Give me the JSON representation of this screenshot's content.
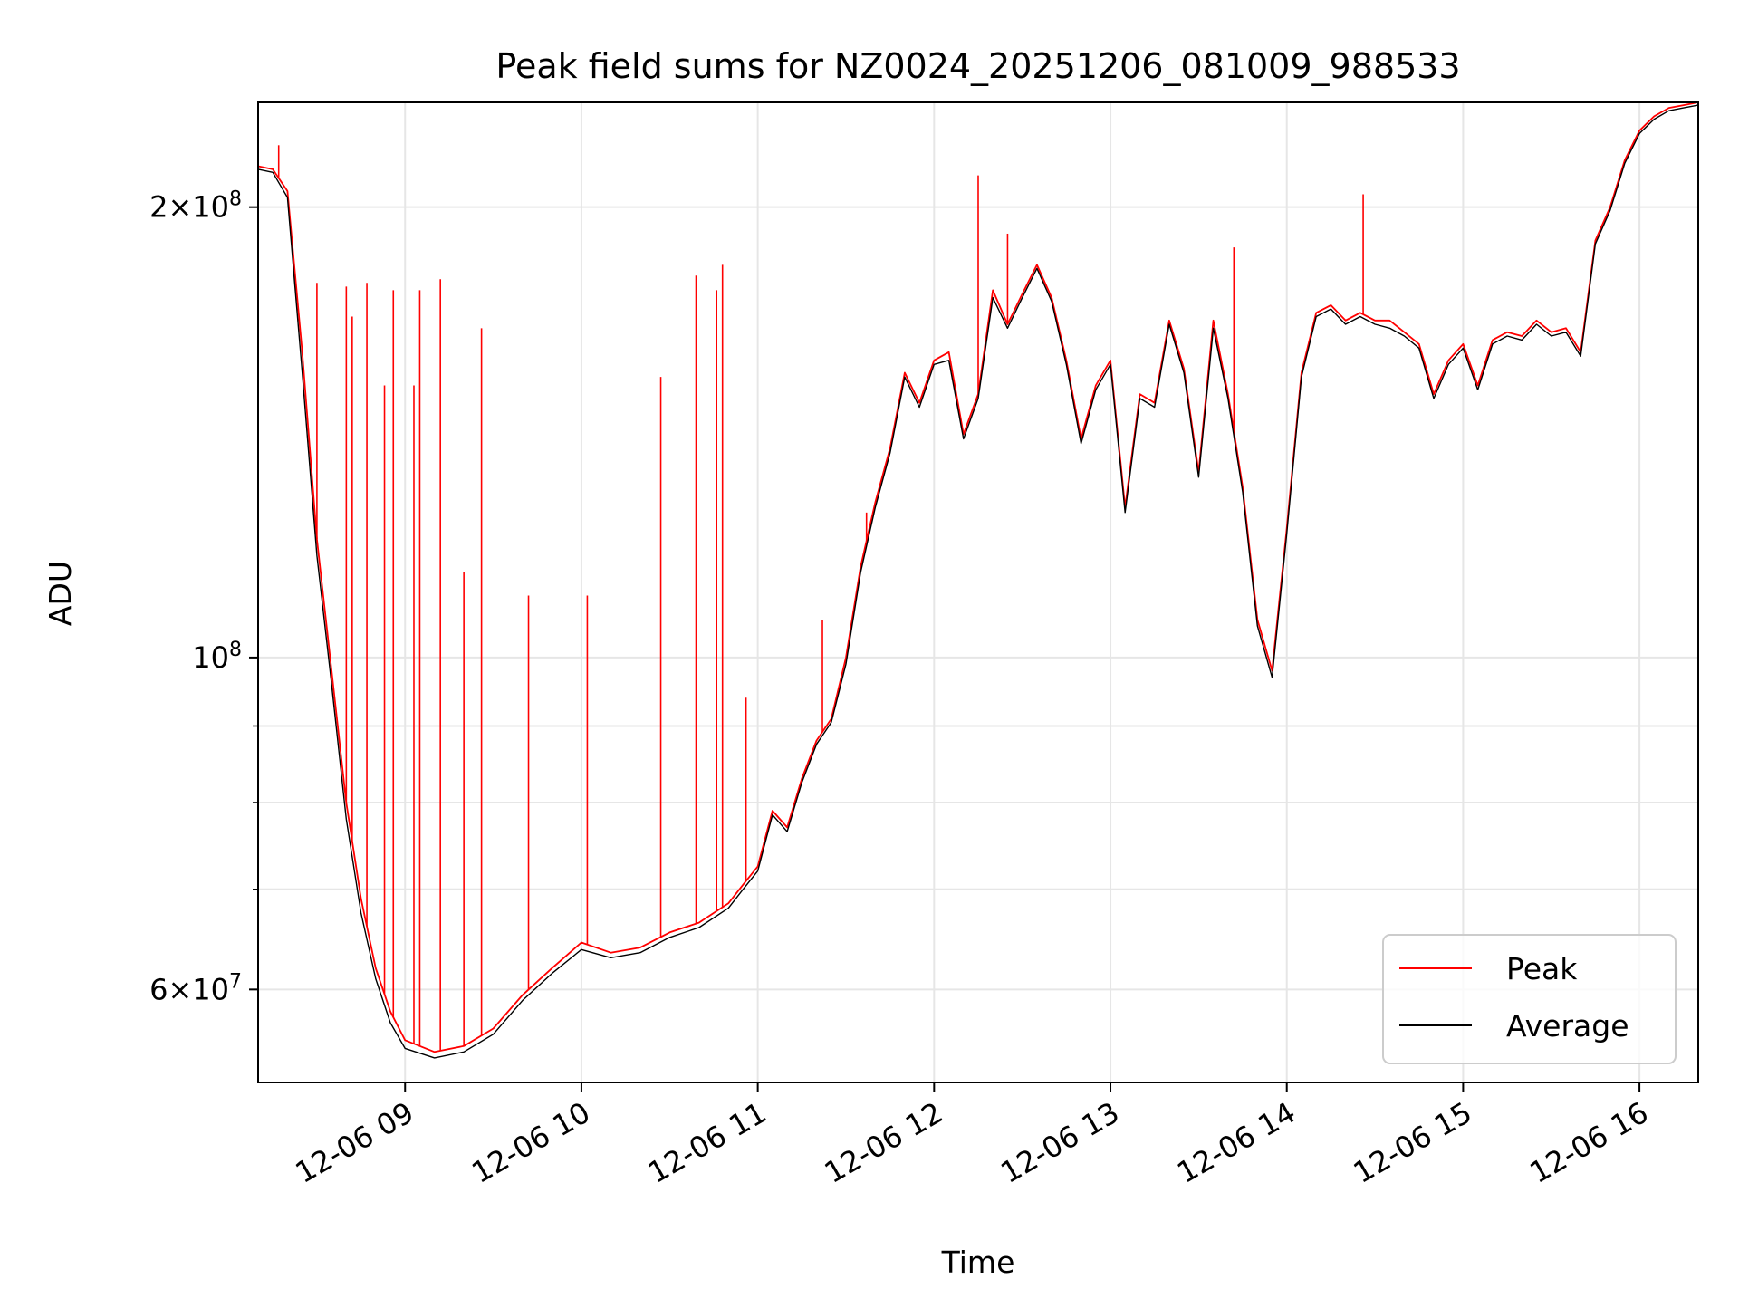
{
  "chart_data": {
    "type": "line",
    "title": "Peak field sums for NZ0024_20251206_081009_988533",
    "xlabel": "Time",
    "ylabel": "ADU",
    "x_axis_kind": "time",
    "xlim": [
      "2025-12-06 08:10",
      "2025-12-06 16:20"
    ],
    "ylim": [
      52000000,
      235000000
    ],
    "yscale": "log",
    "grid": true,
    "legend_location": "lower right",
    "x_ticks": [
      {
        "t": "2025-12-06 09:00",
        "label": "12-06 09"
      },
      {
        "t": "2025-12-06 10:00",
        "label": "12-06 10"
      },
      {
        "t": "2025-12-06 11:00",
        "label": "12-06 11"
      },
      {
        "t": "2025-12-06 12:00",
        "label": "12-06 12"
      },
      {
        "t": "2025-12-06 13:00",
        "label": "12-06 13"
      },
      {
        "t": "2025-12-06 14:00",
        "label": "12-06 14"
      },
      {
        "t": "2025-12-06 15:00",
        "label": "12-06 15"
      },
      {
        "t": "2025-12-06 16:00",
        "label": "12-06 16"
      }
    ],
    "y_ticks_major": [
      {
        "value": 60000000,
        "mantissa": "6",
        "exponent": "7"
      },
      {
        "value": 100000000,
        "mantissa": "",
        "exponent": "8"
      },
      {
        "value": 200000000,
        "mantissa": "2",
        "exponent": "8"
      }
    ],
    "y_ticks_minor": [
      70000000,
      80000000,
      90000000
    ],
    "series": [
      {
        "name": "Peak",
        "color": "#ff0000",
        "x": [
          "2025-12-06 08:10",
          "2025-12-06 08:15",
          "2025-12-06 08:20",
          "2025-12-06 08:25",
          "2025-12-06 08:30",
          "2025-12-06 08:35",
          "2025-12-06 08:40",
          "2025-12-06 08:45",
          "2025-12-06 08:50",
          "2025-12-06 08:55",
          "2025-12-06 09:00",
          "2025-12-06 09:10",
          "2025-12-06 09:20",
          "2025-12-06 09:30",
          "2025-12-06 09:40",
          "2025-12-06 09:50",
          "2025-12-06 10:00",
          "2025-12-06 10:10",
          "2025-12-06 10:20",
          "2025-12-06 10:30",
          "2025-12-06 10:40",
          "2025-12-06 10:50",
          "2025-12-06 10:55",
          "2025-12-06 11:00",
          "2025-12-06 11:05",
          "2025-12-06 11:10",
          "2025-12-06 11:15",
          "2025-12-06 11:20",
          "2025-12-06 11:25",
          "2025-12-06 11:30",
          "2025-12-06 11:35",
          "2025-12-06 11:40",
          "2025-12-06 11:45",
          "2025-12-06 11:50",
          "2025-12-06 11:55",
          "2025-12-06 12:00",
          "2025-12-06 12:05",
          "2025-12-06 12:10",
          "2025-12-06 12:15",
          "2025-12-06 12:20",
          "2025-12-06 12:25",
          "2025-12-06 12:30",
          "2025-12-06 12:35",
          "2025-12-06 12:40",
          "2025-12-06 12:45",
          "2025-12-06 12:50",
          "2025-12-06 12:55",
          "2025-12-06 13:00",
          "2025-12-06 13:05",
          "2025-12-06 13:10",
          "2025-12-06 13:15",
          "2025-12-06 13:20",
          "2025-12-06 13:25",
          "2025-12-06 13:30",
          "2025-12-06 13:35",
          "2025-12-06 13:40",
          "2025-12-06 13:45",
          "2025-12-06 13:50",
          "2025-12-06 13:55",
          "2025-12-06 14:00",
          "2025-12-06 14:05",
          "2025-12-06 14:10",
          "2025-12-06 14:15",
          "2025-12-06 14:20",
          "2025-12-06 14:25",
          "2025-12-06 14:30",
          "2025-12-06 14:35",
          "2025-12-06 14:40",
          "2025-12-06 14:45",
          "2025-12-06 14:50",
          "2025-12-06 14:55",
          "2025-12-06 15:00",
          "2025-12-06 15:05",
          "2025-12-06 15:10",
          "2025-12-06 15:15",
          "2025-12-06 15:20",
          "2025-12-06 15:25",
          "2025-12-06 15:30",
          "2025-12-06 15:35",
          "2025-12-06 15:40",
          "2025-12-06 15:45",
          "2025-12-06 15:50",
          "2025-12-06 15:55",
          "2025-12-06 16:00",
          "2025-12-06 16:05",
          "2025-12-06 16:10",
          "2025-12-06 16:15",
          "2025-12-06 16:20"
        ],
        "y": [
          213000000,
          212000000,
          205000000,
          160000000,
          120000000,
          98000000,
          80000000,
          69000000,
          62000000,
          58000000,
          55500000,
          54500000,
          55000000,
          56500000,
          59500000,
          62000000,
          64500000,
          63500000,
          64000000,
          65500000,
          66500000,
          68500000,
          70500000,
          72500000,
          79000000,
          77000000,
          83000000,
          88000000,
          91000000,
          100000000,
          115000000,
          127000000,
          138000000,
          155000000,
          148000000,
          158000000,
          160000000,
          141000000,
          150000000,
          176000000,
          167000000,
          175000000,
          183000000,
          174000000,
          158000000,
          140000000,
          152000000,
          158000000,
          126000000,
          150000000,
          148000000,
          168000000,
          156000000,
          133000000,
          168000000,
          150000000,
          130000000,
          106000000,
          98000000,
          122000000,
          155000000,
          170000000,
          172000000,
          168000000,
          170000000,
          168000000,
          168000000,
          165000000,
          162000000,
          150000000,
          158000000,
          162000000,
          152000000,
          163000000,
          165000000,
          164000000,
          168000000,
          165000000,
          166000000,
          160000000,
          190000000,
          200000000,
          215000000,
          225000000,
          230000000,
          233000000,
          234000000,
          235000000
        ],
        "spikes": [
          {
            "t": "2025-12-06 08:17",
            "y": 220000000
          },
          {
            "t": "2025-12-06 08:30",
            "y": 178000000
          },
          {
            "t": "2025-12-06 08:40",
            "y": 177000000
          },
          {
            "t": "2025-12-06 08:42",
            "y": 169000000
          },
          {
            "t": "2025-12-06 08:47",
            "y": 178000000
          },
          {
            "t": "2025-12-06 08:53",
            "y": 152000000
          },
          {
            "t": "2025-12-06 08:56",
            "y": 176000000
          },
          {
            "t": "2025-12-06 09:03",
            "y": 152000000
          },
          {
            "t": "2025-12-06 09:05",
            "y": 176000000
          },
          {
            "t": "2025-12-06 09:12",
            "y": 179000000
          },
          {
            "t": "2025-12-06 09:20",
            "y": 114000000
          },
          {
            "t": "2025-12-06 09:26",
            "y": 166000000
          },
          {
            "t": "2025-12-06 09:42",
            "y": 110000000
          },
          {
            "t": "2025-12-06 10:02",
            "y": 110000000
          },
          {
            "t": "2025-12-06 10:27",
            "y": 154000000
          },
          {
            "t": "2025-12-06 10:39",
            "y": 180000000
          },
          {
            "t": "2025-12-06 10:46",
            "y": 176000000
          },
          {
            "t": "2025-12-06 10:48",
            "y": 183000000
          },
          {
            "t": "2025-12-06 10:56",
            "y": 94000000
          },
          {
            "t": "2025-12-06 11:22",
            "y": 106000000
          },
          {
            "t": "2025-12-06 11:37",
            "y": 125000000
          },
          {
            "t": "2025-12-06 12:15",
            "y": 210000000
          },
          {
            "t": "2025-12-06 12:25",
            "y": 192000000
          },
          {
            "t": "2025-12-06 13:42",
            "y": 188000000
          },
          {
            "t": "2025-12-06 14:26",
            "y": 204000000
          }
        ]
      },
      {
        "name": "Average",
        "color": "#000000",
        "x": [
          "2025-12-06 08:10",
          "2025-12-06 08:15",
          "2025-12-06 08:20",
          "2025-12-06 08:25",
          "2025-12-06 08:30",
          "2025-12-06 08:35",
          "2025-12-06 08:40",
          "2025-12-06 08:45",
          "2025-12-06 08:50",
          "2025-12-06 08:55",
          "2025-12-06 09:00",
          "2025-12-06 09:10",
          "2025-12-06 09:20",
          "2025-12-06 09:30",
          "2025-12-06 09:40",
          "2025-12-06 09:50",
          "2025-12-06 10:00",
          "2025-12-06 10:10",
          "2025-12-06 10:20",
          "2025-12-06 10:30",
          "2025-12-06 10:40",
          "2025-12-06 10:50",
          "2025-12-06 10:55",
          "2025-12-06 11:00",
          "2025-12-06 11:05",
          "2025-12-06 11:10",
          "2025-12-06 11:15",
          "2025-12-06 11:20",
          "2025-12-06 11:25",
          "2025-12-06 11:30",
          "2025-12-06 11:35",
          "2025-12-06 11:40",
          "2025-12-06 11:45",
          "2025-12-06 11:50",
          "2025-12-06 11:55",
          "2025-12-06 12:00",
          "2025-12-06 12:05",
          "2025-12-06 12:10",
          "2025-12-06 12:15",
          "2025-12-06 12:20",
          "2025-12-06 12:25",
          "2025-12-06 12:30",
          "2025-12-06 12:35",
          "2025-12-06 12:40",
          "2025-12-06 12:45",
          "2025-12-06 12:50",
          "2025-12-06 12:55",
          "2025-12-06 13:00",
          "2025-12-06 13:05",
          "2025-12-06 13:10",
          "2025-12-06 13:15",
          "2025-12-06 13:20",
          "2025-12-06 13:25",
          "2025-12-06 13:30",
          "2025-12-06 13:35",
          "2025-12-06 13:40",
          "2025-12-06 13:45",
          "2025-12-06 13:50",
          "2025-12-06 13:55",
          "2025-12-06 14:00",
          "2025-12-06 14:05",
          "2025-12-06 14:10",
          "2025-12-06 14:15",
          "2025-12-06 14:20",
          "2025-12-06 14:25",
          "2025-12-06 14:30",
          "2025-12-06 14:35",
          "2025-12-06 14:40",
          "2025-12-06 14:45",
          "2025-12-06 14:50",
          "2025-12-06 14:55",
          "2025-12-06 15:00",
          "2025-12-06 15:05",
          "2025-12-06 15:10",
          "2025-12-06 15:15",
          "2025-12-06 15:20",
          "2025-12-06 15:25",
          "2025-12-06 15:30",
          "2025-12-06 15:35",
          "2025-12-06 15:40",
          "2025-12-06 15:45",
          "2025-12-06 15:50",
          "2025-12-06 15:55",
          "2025-12-06 16:00",
          "2025-12-06 16:05",
          "2025-12-06 16:10",
          "2025-12-06 16:15",
          "2025-12-06 16:20"
        ],
        "y": [
          212000000,
          211000000,
          203000000,
          155000000,
          117000000,
          96000000,
          78000000,
          67500000,
          61000000,
          57000000,
          54800000,
          54000000,
          54500000,
          56000000,
          59000000,
          61500000,
          63800000,
          63000000,
          63500000,
          65000000,
          66000000,
          68000000,
          70000000,
          72000000,
          78500000,
          76500000,
          82500000,
          87500000,
          90500000,
          99000000,
          114000000,
          126000000,
          137000000,
          154000000,
          147000000,
          157000000,
          158000000,
          140000000,
          149000000,
          174000000,
          166000000,
          174000000,
          182000000,
          173000000,
          157000000,
          139000000,
          151000000,
          157000000,
          125000000,
          149000000,
          147000000,
          167000000,
          155000000,
          132000000,
          166000000,
          149000000,
          129000000,
          105000000,
          97000000,
          121000000,
          154000000,
          169000000,
          171000000,
          167000000,
          169000000,
          167000000,
          166000000,
          164000000,
          161000000,
          149000000,
          157000000,
          161000000,
          151000000,
          162000000,
          164000000,
          163000000,
          167000000,
          164000000,
          165000000,
          159000000,
          189000000,
          199000000,
          214000000,
          224000000,
          229000000,
          232000000,
          233000000,
          234000000
        ]
      }
    ]
  }
}
